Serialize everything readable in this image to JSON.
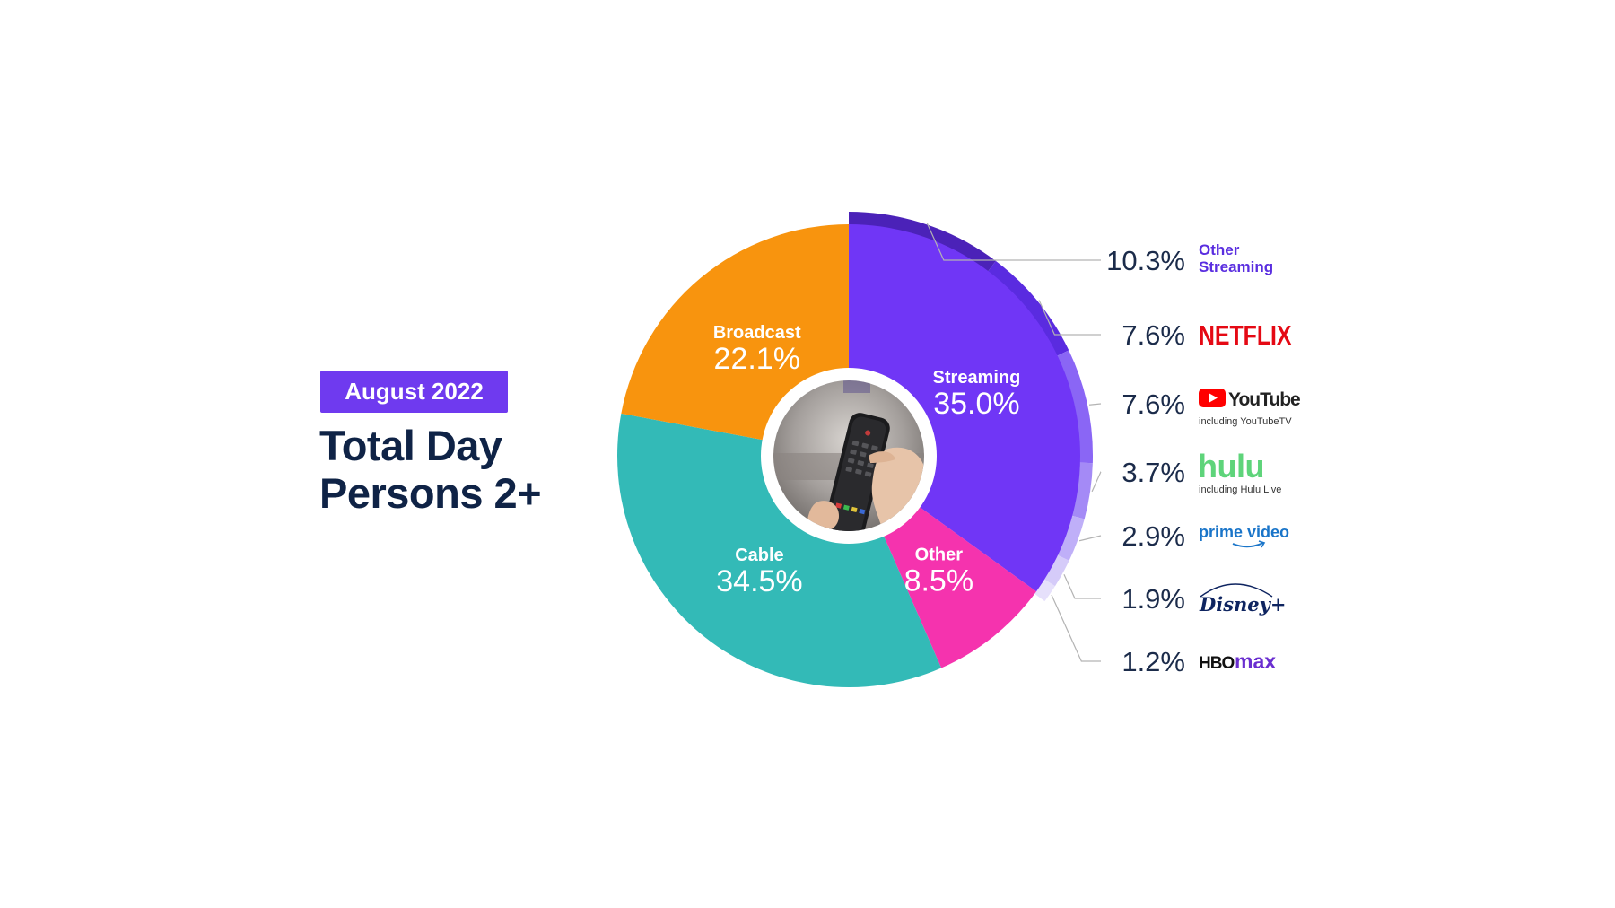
{
  "header": {
    "month_label": "August 2022",
    "title_line1": "Total Day",
    "title_line2": "Persons 2+"
  },
  "center_image": {
    "icon": "tv-remote-photo-icon"
  },
  "chart_data": {
    "type": "pie",
    "categories": [
      "Streaming",
      "Other",
      "Cable",
      "Broadcast"
    ],
    "values": [
      35.0,
      8.5,
      34.5,
      22.1
    ],
    "value_labels": [
      "35.0%",
      "8.5%",
      "34.5%",
      "22.1%"
    ],
    "colors": [
      "#7036f6",
      "#f533ae",
      "#33bab7",
      "#f8940e"
    ],
    "breakdown": {
      "parent": "Streaming",
      "items": [
        {
          "name": "Other Streaming",
          "label_line1": "Other",
          "label_line2": "Streaming",
          "sublabel": "",
          "value": 10.3,
          "value_label": "10.3%",
          "color": "#4b22b8",
          "text_color": "#5a2ee0",
          "logo": "other-streaming-text"
        },
        {
          "name": "NETFLIX",
          "label_line1": "NETFLIX",
          "label_line2": "",
          "sublabel": "",
          "value": 7.6,
          "value_label": "7.6%",
          "color": "#5a2be0",
          "text_color": "#e50914",
          "logo": "netflix-logo"
        },
        {
          "name": "YouTube",
          "label_line1": "YouTube",
          "label_line2": "",
          "sublabel": "including YouTubeTV",
          "value": 7.6,
          "value_label": "7.6%",
          "color": "#8a66f5",
          "text_color": "#222222",
          "logo": "youtube-logo"
        },
        {
          "name": "hulu",
          "label_line1": "hulu",
          "label_line2": "",
          "sublabel": "including Hulu Live",
          "value": 3.7,
          "value_label": "3.7%",
          "color": "#a48af6",
          "text_color": "#5ed47a",
          "logo": "hulu-logo"
        },
        {
          "name": "prime video",
          "label_line1": "prime video",
          "label_line2": "",
          "sublabel": "",
          "value": 2.9,
          "value_label": "2.9%",
          "color": "#bfaff8",
          "text_color": "#1a75c9",
          "logo": "prime-video-logo"
        },
        {
          "name": "Disney+",
          "label_line1": "Disney+",
          "label_line2": "",
          "sublabel": "",
          "value": 1.9,
          "value_label": "1.9%",
          "color": "#d5cbf9",
          "text_color": "#0e2460",
          "logo": "disney-plus-logo"
        },
        {
          "name": "HBO max",
          "label_line1": "HBO",
          "label_line2": "max",
          "sublabel": "",
          "value": 1.2,
          "value_label": "1.2%",
          "color": "#e6e0fb",
          "text_color": "#111111",
          "logo": "hbo-max-logo"
        }
      ]
    }
  },
  "colors": {
    "title": "#0f2346",
    "badge": "#6f3aef",
    "leader_line": "#b3b3b3",
    "value_text": "#1b2b4a"
  }
}
